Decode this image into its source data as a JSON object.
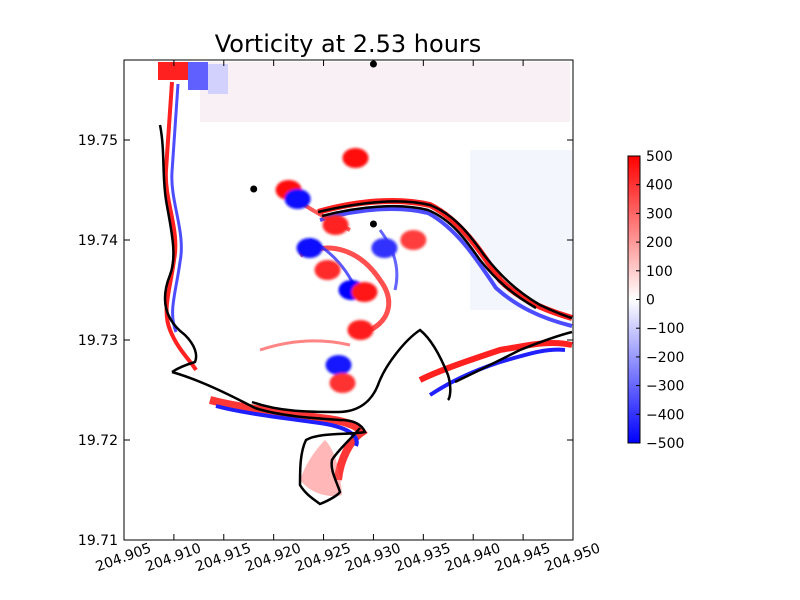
{
  "chart_data": {
    "type": "heatmap",
    "title": "Vorticity at 2.53 hours",
    "xlabel": "",
    "ylabel": "",
    "xlim": [
      204.905,
      204.95
    ],
    "ylim": [
      19.71,
      19.758
    ],
    "x_ticks": [
      {
        "value": 204.905,
        "label": "204.905"
      },
      {
        "value": 204.91,
        "label": "204.910"
      },
      {
        "value": 204.915,
        "label": "204.915"
      },
      {
        "value": 204.92,
        "label": "204.920"
      },
      {
        "value": 204.925,
        "label": "204.925"
      },
      {
        "value": 204.93,
        "label": "204.930"
      },
      {
        "value": 204.935,
        "label": "204.935"
      },
      {
        "value": 204.94,
        "label": "204.940"
      },
      {
        "value": 204.945,
        "label": "204.945"
      },
      {
        "value": 204.95,
        "label": "204.950"
      }
    ],
    "y_ticks": [
      {
        "value": 19.71,
        "label": "19.71"
      },
      {
        "value": 19.72,
        "label": "19.72"
      },
      {
        "value": 19.73,
        "label": "19.73"
      },
      {
        "value": 19.74,
        "label": "19.74"
      },
      {
        "value": 19.75,
        "label": "19.75"
      }
    ],
    "colorbar": {
      "range": [
        -500,
        500
      ],
      "colormap": "bwr",
      "colors": {
        "low": "#0000ff",
        "mid": "#ffffff",
        "high": "#ff0000"
      },
      "ticks": [
        {
          "value": 500,
          "label": "500"
        },
        {
          "value": 400,
          "label": "400"
        },
        {
          "value": 300,
          "label": "300"
        },
        {
          "value": 200,
          "label": "200"
        },
        {
          "value": 100,
          "label": "100"
        },
        {
          "value": 0,
          "label": "0"
        },
        {
          "value": -100,
          "label": "−100"
        },
        {
          "value": -200,
          "label": "−200"
        },
        {
          "value": -300,
          "label": "−300"
        },
        {
          "value": -400,
          "label": "−400"
        },
        {
          "value": -500,
          "label": "−500"
        }
      ]
    },
    "markers": [
      {
        "x": 204.93,
        "y": 19.7576
      },
      {
        "x": 204.918,
        "y": 19.7451
      },
      {
        "x": 204.93,
        "y": 19.7416
      }
    ],
    "eddies": [
      {
        "x": 204.9282,
        "y": 19.7482,
        "vorticity": 480
      },
      {
        "x": 204.9215,
        "y": 19.745,
        "vorticity": 470
      },
      {
        "x": 204.9224,
        "y": 19.7441,
        "vorticity": -480
      },
      {
        "x": 204.9236,
        "y": 19.7392,
        "vorticity": -480
      },
      {
        "x": 204.9262,
        "y": 19.7415,
        "vorticity": 430
      },
      {
        "x": 204.9278,
        "y": 19.735,
        "vorticity": -500
      },
      {
        "x": 204.9291,
        "y": 19.7348,
        "vorticity": 450
      },
      {
        "x": 204.9311,
        "y": 19.7392,
        "vorticity": -400
      },
      {
        "x": 204.9287,
        "y": 19.731,
        "vorticity": 440
      },
      {
        "x": 204.9265,
        "y": 19.7275,
        "vorticity": -450
      },
      {
        "x": 204.9269,
        "y": 19.7257,
        "vorticity": 400
      },
      {
        "x": 204.934,
        "y": 19.74,
        "vorticity": 380
      },
      {
        "x": 204.9254,
        "y": 19.737,
        "vorticity": 420
      }
    ]
  }
}
